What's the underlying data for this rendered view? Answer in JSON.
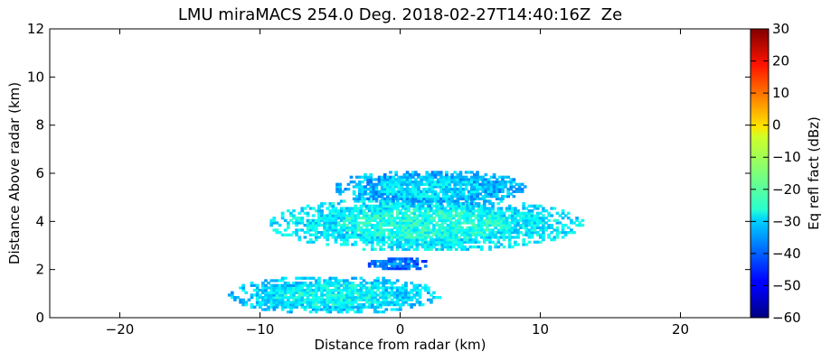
{
  "chart_data": {
    "type": "heatmap",
    "title": "LMU miraMACS 254.0 Deg. 2018-02-27T14:40:16Z  Ze",
    "xlabel": "Distance from radar (km)",
    "ylabel": "Distance Above radar  (km)",
    "xlim": [
      -25,
      25
    ],
    "ylim": [
      0,
      12
    ],
    "xticks": [
      -20,
      -10,
      0,
      10,
      20
    ],
    "yticks": [
      0,
      2,
      4,
      6,
      8,
      10,
      12
    ],
    "xtick_labels": [
      "−20",
      "−10",
      "0",
      "10",
      "20"
    ],
    "ytick_labels": [
      "0",
      "2",
      "4",
      "6",
      "8",
      "10",
      "12"
    ],
    "colorbar": {
      "label": "Eq refl fact (dBz)",
      "range": [
        -60,
        30
      ],
      "ticks": [
        -60,
        -50,
        -40,
        -30,
        -20,
        -10,
        0,
        10,
        20,
        30
      ],
      "tick_labels": [
        "−60",
        "−50",
        "−40",
        "−30",
        "−20",
        "−10",
        "0",
        "10",
        "20",
        "30"
      ],
      "colormap": "jet"
    },
    "echo_regions": [
      {
        "name": "main-echo-layer",
        "x": [
          -9.5,
          13
        ],
        "y": [
          2.7,
          5.0
        ],
        "ze_dbz": -28
      },
      {
        "name": "upper-echo-layer",
        "x": [
          -5,
          9
        ],
        "y": [
          4.6,
          6.1
        ],
        "ze_dbz": -33
      },
      {
        "name": "mid-echo-band",
        "x": [
          -2.5,
          2
        ],
        "y": [
          1.9,
          2.5
        ],
        "ze_dbz": -40
      },
      {
        "name": "near-ground-echo",
        "x": [
          -12.5,
          2.8
        ],
        "y": [
          0.1,
          1.7
        ],
        "ze_dbz": -30
      }
    ]
  }
}
